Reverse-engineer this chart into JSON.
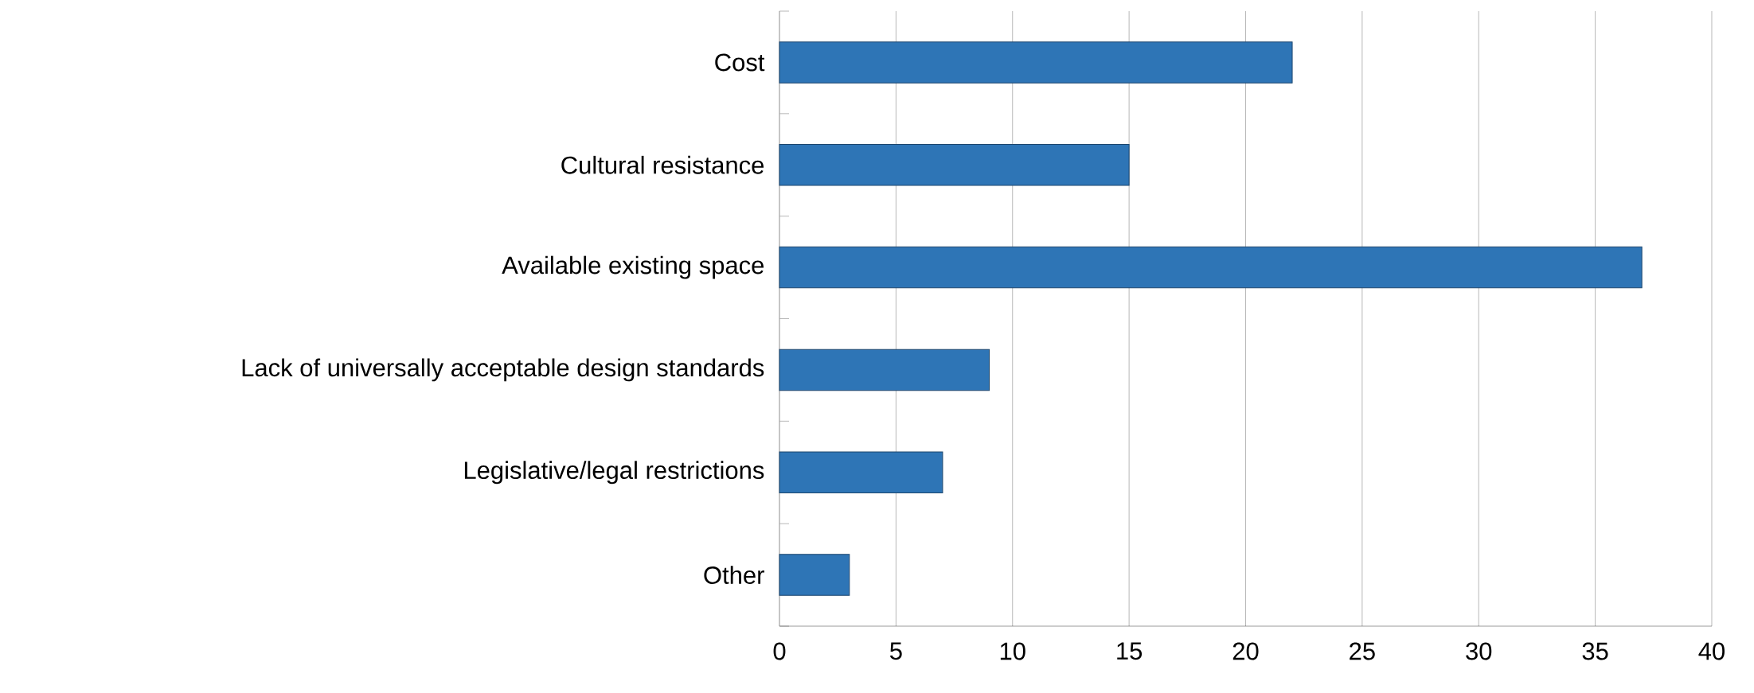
{
  "chart_data": {
    "type": "bar",
    "orientation": "horizontal",
    "categories": [
      "Cost",
      "Cultural resistance",
      "Available existing space",
      "Lack of universally acceptable design standards",
      "Legislative/legal restrictions",
      "Other"
    ],
    "values": [
      22,
      15,
      37,
      9,
      7,
      3
    ],
    "color": "#2e75b6",
    "xlim": [
      0,
      40
    ],
    "xticks": [
      0,
      5,
      10,
      15,
      20,
      25,
      30,
      35,
      40
    ],
    "grid": "x"
  }
}
